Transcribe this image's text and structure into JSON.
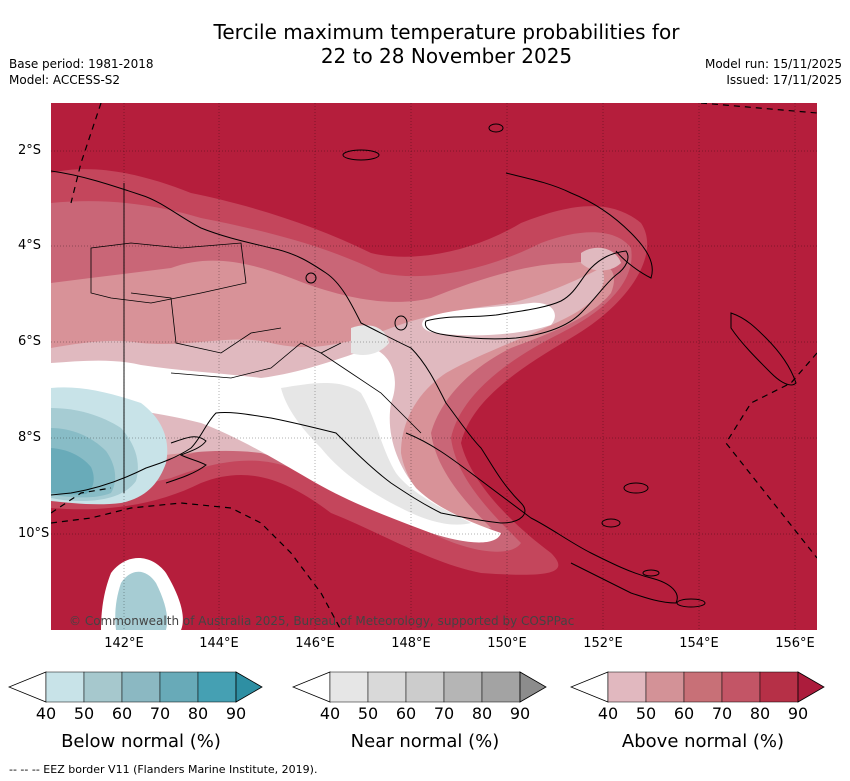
{
  "title": {
    "line1": "Tercile maximum temperature probabilities for",
    "line2": "22 to 28 November 2025"
  },
  "meta": {
    "base_period": "Base period: 1981-2018",
    "model": "Model: ACCESS-S2",
    "model_run": "Model run: 15/11/2025",
    "issued": "Issued: 17/11/2025"
  },
  "map": {
    "lat_labels": [
      "2°S",
      "4°S",
      "6°S",
      "8°S",
      "10°S"
    ],
    "lon_labels": [
      "142°E",
      "144°E",
      "146°E",
      "148°E",
      "150°E",
      "152°E",
      "154°E",
      "156°E"
    ],
    "copyright": "© Commonwealth of Australia 2025, Bureau of Meteorology, supported by COSPPac",
    "colors": {
      "above_90": "#b51e3c",
      "above_80": "#c4465c",
      "above_70": "#c96677",
      "above_60": "#d89298",
      "above_50": "#e0b9bf",
      "white": "#ffffff",
      "near_40": "#e6e6e6",
      "below_50": "#c8e3e8",
      "below_60": "#a6ccd3",
      "below_70": "#88bcc6",
      "below_80": "#69abb9"
    }
  },
  "colorbars": [
    {
      "label": "Below normal (%)",
      "ticks": [
        "40",
        "50",
        "60",
        "70",
        "80",
        "90"
      ],
      "colors": [
        "#ffffff",
        "#c8e3e8",
        "#a6c8cd",
        "#8bb8c2",
        "#68aab8",
        "#45a0b3",
        "#2e8fa3"
      ]
    },
    {
      "label": "Near normal (%)",
      "ticks": [
        "40",
        "50",
        "60",
        "70",
        "80",
        "90"
      ],
      "colors": [
        "#ffffff",
        "#e6e6e6",
        "#d9d9d9",
        "#cccccc",
        "#b5b5b5",
        "#a3a3a3",
        "#8c8c8c"
      ]
    },
    {
      "label": "Above normal (%)",
      "ticks": [
        "40",
        "50",
        "60",
        "70",
        "80",
        "90"
      ],
      "colors": [
        "#ffffff",
        "#e1b8bf",
        "#d39297",
        "#c87077",
        "#c35566",
        "#b63047",
        "#ac1c3c"
      ]
    }
  ],
  "footnote": "--  --  -- EEZ border V11 (Flanders Marine Institute, 2019)."
}
